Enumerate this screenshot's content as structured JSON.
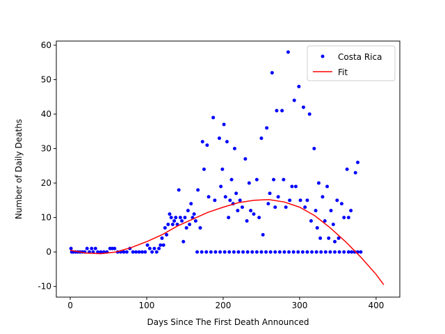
{
  "chart_data": {
    "type": "scatter",
    "x_label": "Days Since The First Death Announced",
    "y_label": "Number of Daily Deaths",
    "xlim": [
      -18.2,
      431
    ],
    "ylim": [
      -13.1,
      61.2
    ],
    "xticks": [
      0,
      100,
      200,
      300,
      400
    ],
    "yticks": [
      -10,
      0,
      10,
      20,
      30,
      40,
      50,
      60
    ],
    "legend": "upper right",
    "series": [
      {
        "name": "Costa Rica",
        "color": "#0000ff",
        "kind": "scatter",
        "x": [
          1,
          2,
          4,
          7,
          10,
          13,
          16,
          19,
          22,
          25,
          28,
          30,
          33,
          36,
          40,
          44,
          48,
          52,
          55,
          58,
          62,
          66,
          70,
          74,
          78,
          82,
          86,
          90,
          94,
          98,
          101,
          104,
          107,
          110,
          113,
          116,
          118,
          120,
          122,
          124,
          126,
          128,
          130,
          132,
          134,
          136,
          138,
          140,
          142,
          144,
          146,
          148,
          150,
          152,
          154,
          156,
          158,
          160,
          162,
          164,
          167,
          170,
          173,
          175,
          179,
          181,
          187,
          189,
          195,
          197,
          199,
          201,
          203,
          205,
          207,
          209,
          211,
          213,
          215,
          217,
          219,
          222,
          225,
          229,
          231,
          234,
          236,
          240,
          244,
          247,
          250,
          252,
          257,
          259,
          261,
          264,
          266,
          268,
          270,
          272,
          277,
          279,
          282,
          285,
          287,
          290,
          293,
          295,
          299,
          301,
          305,
          307,
          310,
          313,
          315,
          319,
          321,
          323,
          325,
          327,
          330,
          333,
          336,
          338,
          341,
          344,
          346,
          349,
          351,
          355,
          358,
          362,
          364,
          367,
          373,
          376,
          166,
          172,
          178,
          184,
          190,
          196,
          202,
          208,
          214,
          220,
          226,
          232,
          238,
          244,
          250,
          256,
          262,
          268,
          274,
          280,
          286,
          292,
          298,
          304,
          310,
          316,
          322,
          328,
          334,
          340,
          346,
          352,
          358,
          364,
          368,
          372,
          376,
          380
        ],
        "values": [
          1,
          0,
          0,
          0,
          0,
          0,
          0,
          0,
          1,
          0,
          1,
          0,
          1,
          0,
          0,
          0,
          0,
          1,
          1,
          1,
          0,
          0,
          0,
          0,
          1,
          0,
          0,
          0,
          0,
          0,
          2,
          1,
          0,
          1,
          0,
          1,
          2,
          4,
          2,
          7,
          5,
          8,
          11,
          10,
          8,
          9,
          10,
          8,
          18,
          10,
          9,
          3,
          10,
          7,
          12,
          8,
          14,
          10,
          11,
          9,
          18,
          7,
          32,
          24,
          31,
          16,
          39,
          15,
          33,
          19,
          24,
          37,
          16,
          32,
          10,
          15,
          21,
          14,
          30,
          17,
          12,
          15,
          13,
          27,
          9,
          20,
          12,
          11,
          21,
          10,
          33,
          5,
          36,
          14,
          17,
          52,
          21,
          13,
          41,
          16,
          41,
          21,
          13,
          58,
          15,
          19,
          44,
          19,
          48,
          15,
          42,
          13,
          15,
          40,
          9,
          30,
          12,
          7,
          20,
          4,
          16,
          9,
          19,
          4,
          12,
          8,
          3,
          15,
          4,
          14,
          10,
          24,
          10,
          12,
          23,
          26,
          0,
          0,
          0,
          0,
          0,
          0,
          0,
          0,
          0,
          0,
          0,
          0,
          0,
          0,
          0,
          0,
          0,
          0,
          0,
          0,
          0,
          0,
          0,
          0,
          0,
          0,
          0,
          0,
          0,
          0,
          0,
          0,
          0,
          0,
          0,
          0,
          0,
          0
        ]
      },
      {
        "name": "Fit",
        "color": "#ff0000",
        "kind": "line",
        "x": [
          0,
          20,
          40,
          60,
          80,
          100,
          120,
          140,
          160,
          180,
          200,
          220,
          240,
          260,
          280,
          300,
          320,
          340,
          360,
          380,
          400,
          410
        ],
        "values": [
          0.5,
          -0.3,
          -0.5,
          0,
          1.3,
          3,
          5,
          7.5,
          9.5,
          11.5,
          13,
          14.3,
          15,
          15.2,
          14.5,
          13,
          10.5,
          7,
          3,
          -1.5,
          -6.5,
          -9.5
        ]
      }
    ]
  }
}
